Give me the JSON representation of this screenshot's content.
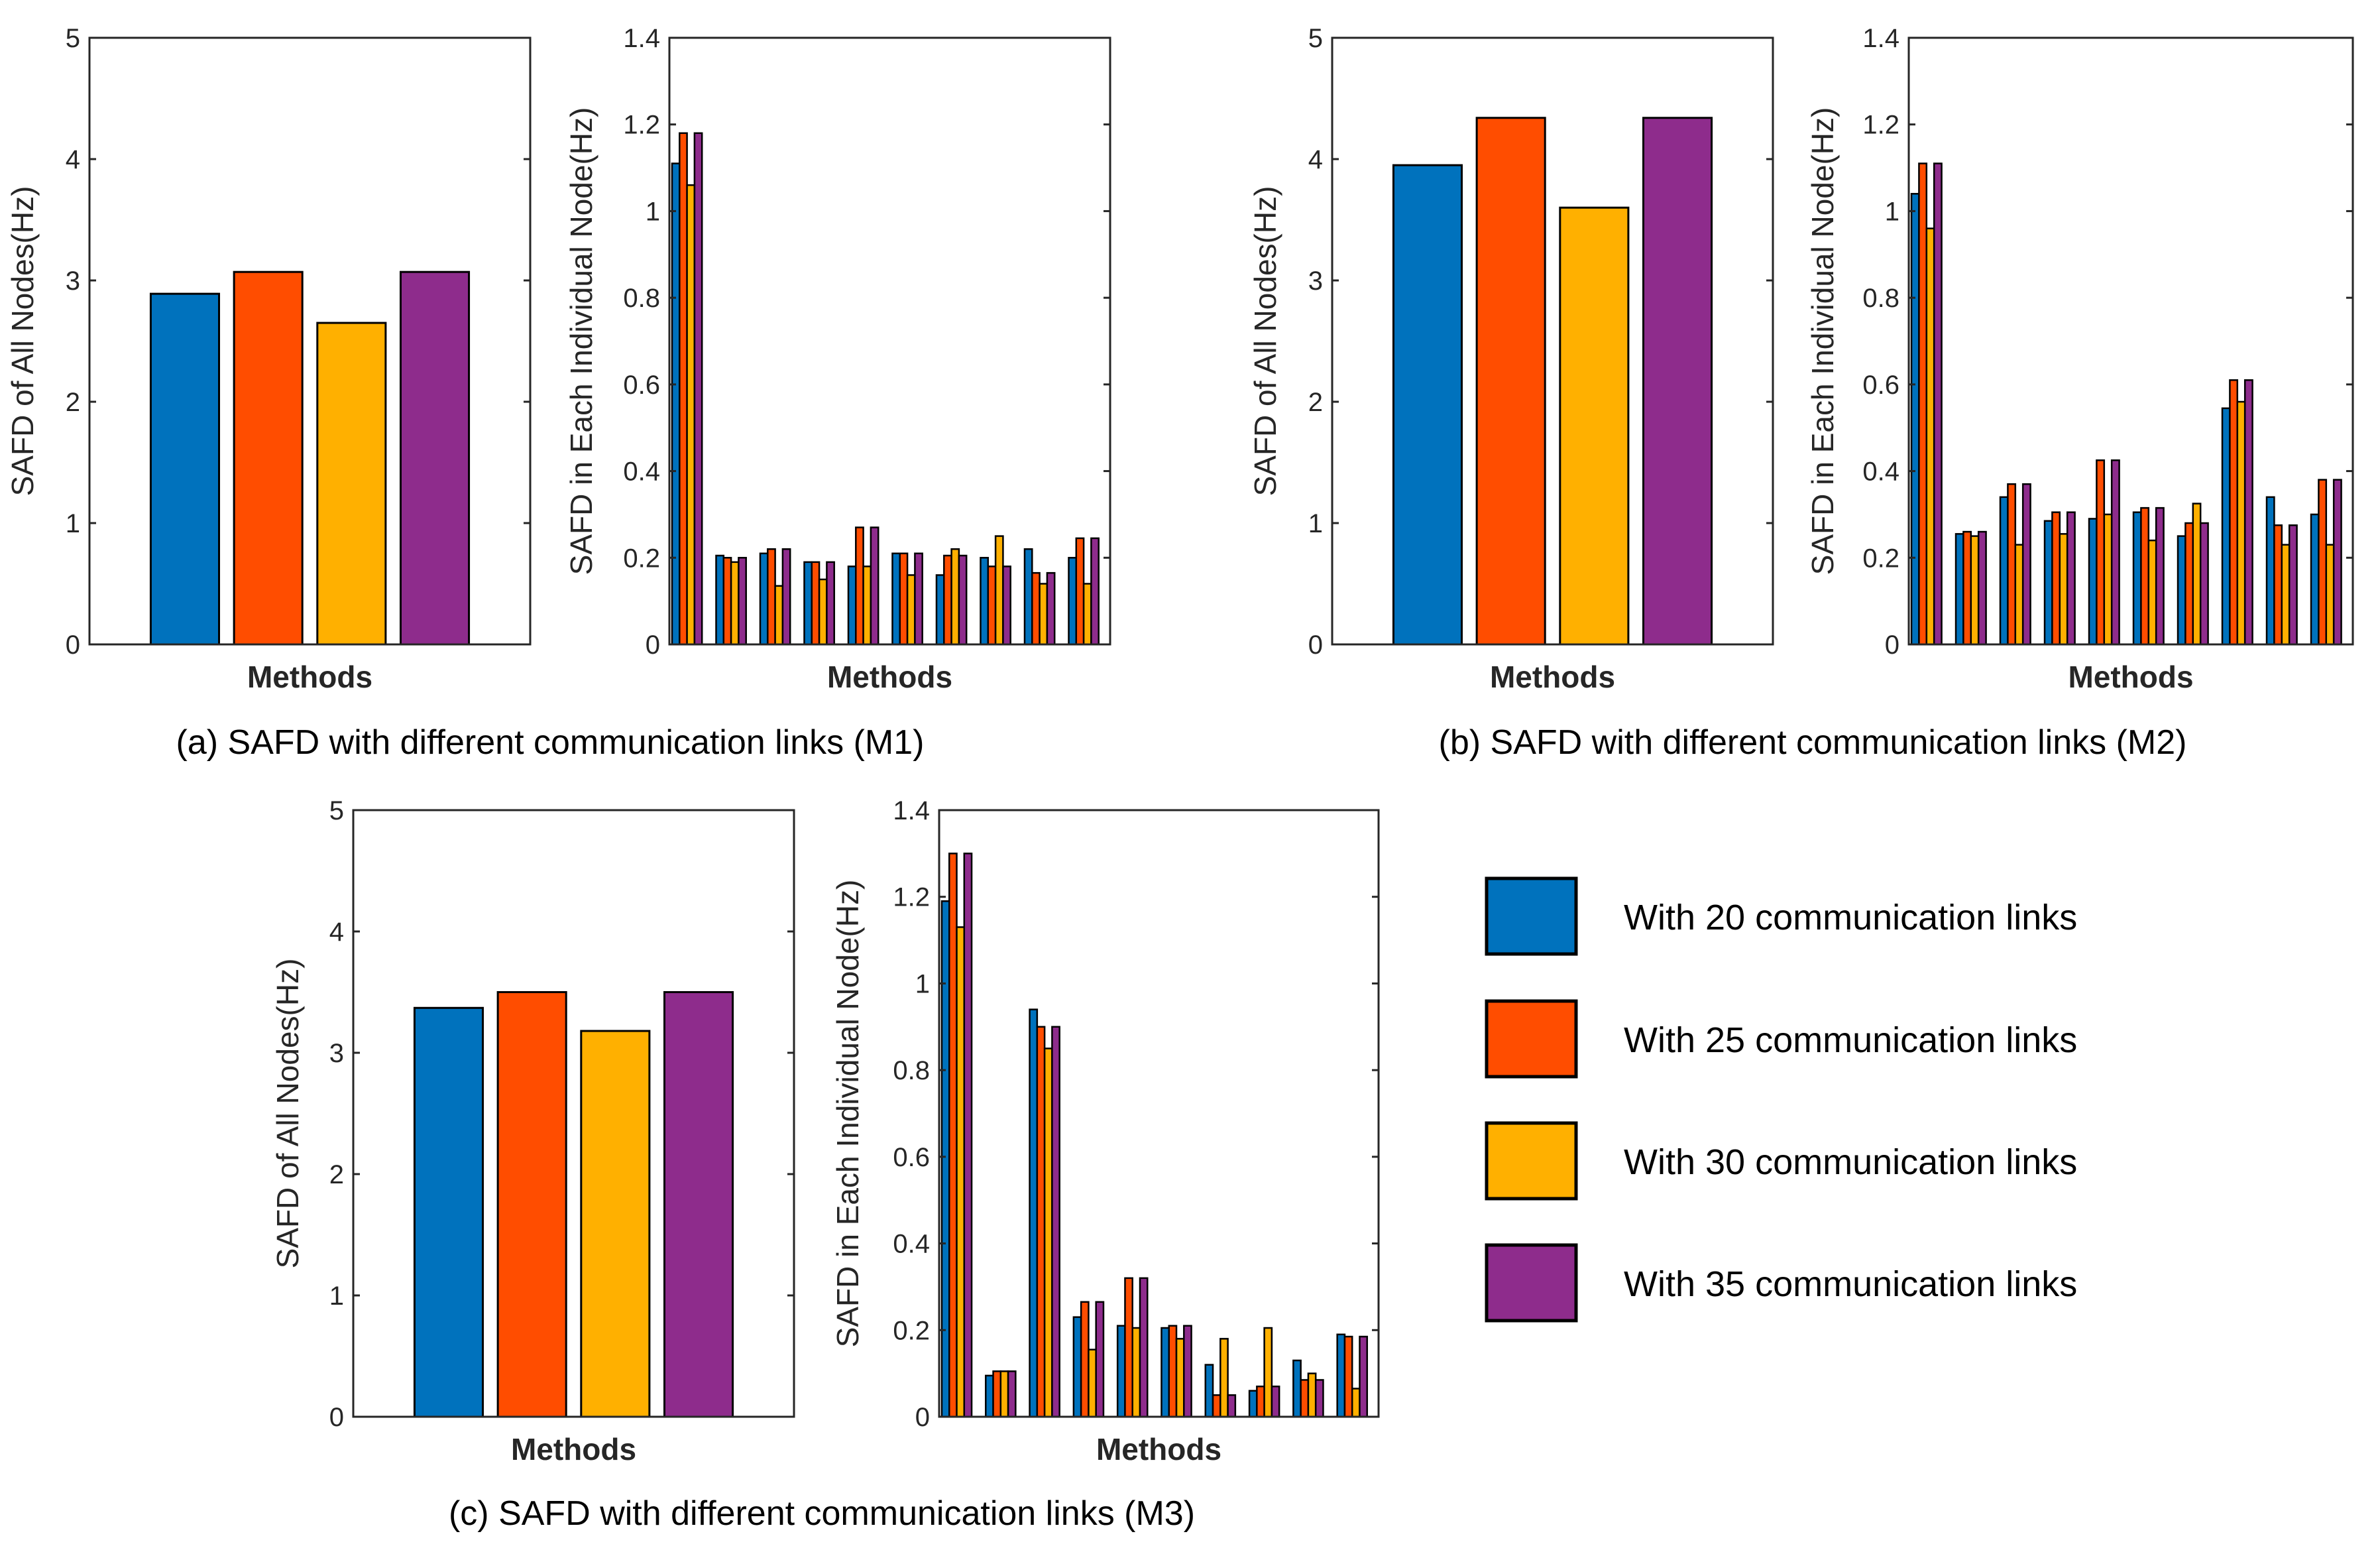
{
  "figure": {
    "colors": {
      "s20": "#0072BD",
      "s25": "#FF4D00",
      "s30": "#FFB000",
      "s35": "#8E2C8C",
      "axis": "#262626"
    },
    "legend": [
      {
        "key": "s20",
        "label": "With 20 communication links"
      },
      {
        "key": "s25",
        "label": "With 25 communication links"
      },
      {
        "key": "s30",
        "label": "With 30 communication links"
      },
      {
        "key": "s35",
        "label": "With 35 communication links"
      }
    ],
    "captions": {
      "a": "(a) SAFD with different communication links (M1)",
      "b": "(b) SAFD with different communication links (M2)",
      "c": "(c) SAFD with different communication links (M3)"
    }
  },
  "chart_data": [
    {
      "id": "a-all",
      "type": "bar",
      "panel": "a",
      "xlabel": "Methods",
      "ylabel": "SAFD of All Nodes(Hz)",
      "ylim": [
        0,
        5
      ],
      "yticks": [
        "0",
        "1",
        "2",
        "3",
        "4",
        "5"
      ],
      "series": [
        {
          "name": "With 20 communication links",
          "values": [
            2.89
          ]
        },
        {
          "name": "With 25 communication links",
          "values": [
            3.07
          ]
        },
        {
          "name": "With 30 communication links",
          "values": [
            2.65
          ]
        },
        {
          "name": "With 35 communication links",
          "values": [
            3.07
          ]
        }
      ]
    },
    {
      "id": "a-node",
      "type": "bar",
      "panel": "a",
      "xlabel": "Methods",
      "ylabel": "SAFD in Each Individual Node(Hz)",
      "ylim": [
        0,
        1.4
      ],
      "yticks": [
        "0",
        "0.2",
        "0.4",
        "0.6",
        "0.8",
        "1",
        "1.2",
        "1.4"
      ],
      "series": [
        {
          "name": "With 20 communication links",
          "values": [
            1.11,
            0.205,
            0.21,
            0.19,
            0.18,
            0.21,
            0.16,
            0.2,
            0.22,
            0.2
          ]
        },
        {
          "name": "With 25 communication links",
          "values": [
            1.18,
            0.2,
            0.22,
            0.19,
            0.27,
            0.21,
            0.205,
            0.18,
            0.165,
            0.245
          ]
        },
        {
          "name": "With 30 communication links",
          "values": [
            1.06,
            0.19,
            0.135,
            0.15,
            0.18,
            0.16,
            0.22,
            0.25,
            0.14,
            0.14
          ]
        },
        {
          "name": "With 35 communication links",
          "values": [
            1.18,
            0.2,
            0.22,
            0.19,
            0.27,
            0.21,
            0.205,
            0.18,
            0.165,
            0.245
          ]
        }
      ]
    },
    {
      "id": "b-all",
      "type": "bar",
      "panel": "b",
      "xlabel": "Methods",
      "ylabel": "SAFD of All Nodes(Hz)",
      "ylim": [
        0,
        5
      ],
      "yticks": [
        "0",
        "1",
        "2",
        "3",
        "4",
        "5"
      ],
      "series": [
        {
          "name": "With 20 communication links",
          "values": [
            3.95
          ]
        },
        {
          "name": "With 25 communication links",
          "values": [
            4.34
          ]
        },
        {
          "name": "With 30 communication links",
          "values": [
            3.6
          ]
        },
        {
          "name": "With 35 communication links",
          "values": [
            4.34
          ]
        }
      ]
    },
    {
      "id": "b-node",
      "type": "bar",
      "panel": "b",
      "xlabel": "Methods",
      "ylabel": "SAFD in Each Individual Node(Hz)",
      "ylim": [
        0,
        1.4
      ],
      "yticks": [
        "0",
        "0.2",
        "0.4",
        "0.6",
        "0.8",
        "1",
        "1.2",
        "1.4"
      ],
      "series": [
        {
          "name": "With 20 communication links",
          "values": [
            1.04,
            0.255,
            0.34,
            0.285,
            0.29,
            0.305,
            0.25,
            0.545,
            0.34,
            0.3
          ]
        },
        {
          "name": "With 25 communication links",
          "values": [
            1.11,
            0.26,
            0.37,
            0.305,
            0.425,
            0.315,
            0.28,
            0.61,
            0.275,
            0.38
          ]
        },
        {
          "name": "With 30 communication links",
          "values": [
            0.96,
            0.25,
            0.23,
            0.255,
            0.3,
            0.24,
            0.325,
            0.56,
            0.23,
            0.23
          ]
        },
        {
          "name": "With 35 communication links",
          "values": [
            1.11,
            0.26,
            0.37,
            0.305,
            0.425,
            0.315,
            0.28,
            0.61,
            0.275,
            0.38
          ]
        }
      ]
    },
    {
      "id": "c-all",
      "type": "bar",
      "panel": "c",
      "xlabel": "Methods",
      "ylabel": "SAFD of All Nodes(Hz)",
      "ylim": [
        0,
        5
      ],
      "yticks": [
        "0",
        "1",
        "2",
        "3",
        "4",
        "5"
      ],
      "series": [
        {
          "name": "With 20 communication links",
          "values": [
            3.37
          ]
        },
        {
          "name": "With 25 communication links",
          "values": [
            3.5
          ]
        },
        {
          "name": "With 30 communication links",
          "values": [
            3.18
          ]
        },
        {
          "name": "With 35 communication links",
          "values": [
            3.5
          ]
        }
      ]
    },
    {
      "id": "c-node",
      "type": "bar",
      "panel": "c",
      "xlabel": "Methods",
      "ylabel": "SAFD in Each Individual Node(Hz)",
      "ylim": [
        0,
        1.4
      ],
      "yticks": [
        "0",
        "0.2",
        "0.4",
        "0.6",
        "0.8",
        "1",
        "1.2",
        "1.4"
      ],
      "series": [
        {
          "name": "With 20 communication links",
          "values": [
            1.19,
            0.095,
            0.94,
            0.23,
            0.21,
            0.205,
            0.12,
            0.06,
            0.13,
            0.19
          ]
        },
        {
          "name": "With 25 communication links",
          "values": [
            1.3,
            0.105,
            0.9,
            0.265,
            0.32,
            0.21,
            0.05,
            0.07,
            0.085,
            0.185
          ]
        },
        {
          "name": "With 30 communication links",
          "values": [
            1.13,
            0.105,
            0.85,
            0.155,
            0.205,
            0.18,
            0.18,
            0.205,
            0.1,
            0.065
          ]
        },
        {
          "name": "With 35 communication links",
          "values": [
            1.3,
            0.105,
            0.9,
            0.265,
            0.32,
            0.21,
            0.05,
            0.07,
            0.085,
            0.185
          ]
        }
      ]
    }
  ]
}
